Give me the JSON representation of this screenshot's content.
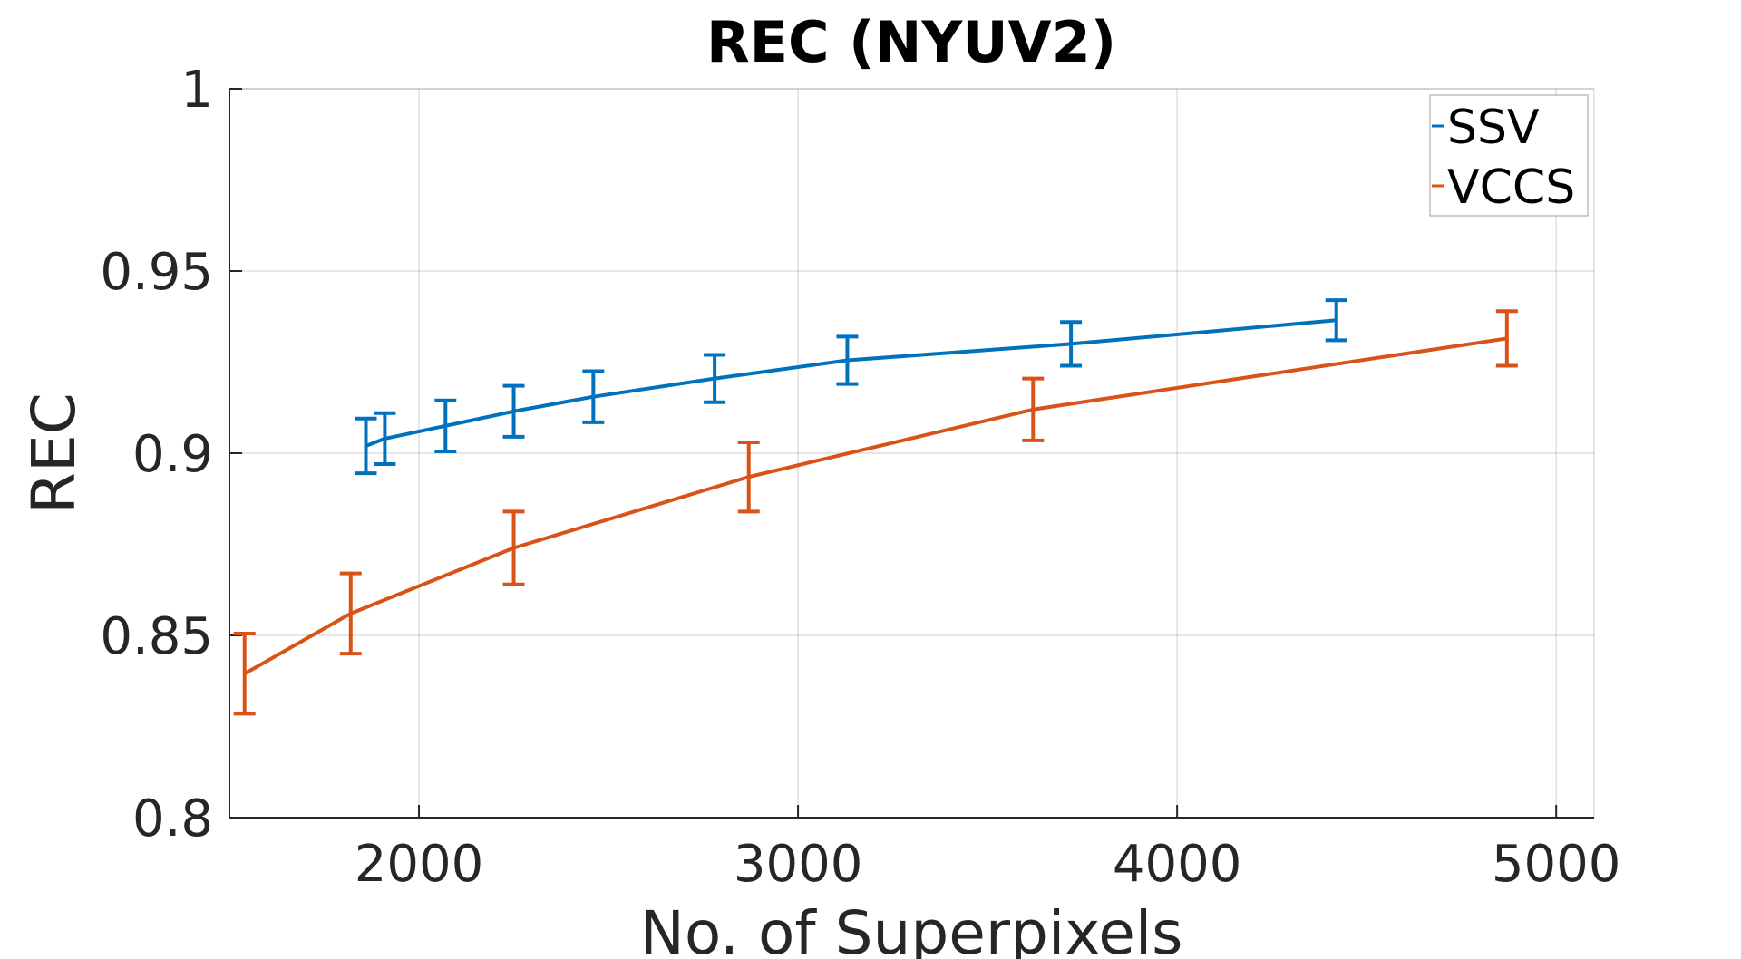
{
  "chart_data": {
    "type": "line",
    "title": "REC (NYUV2)",
    "xlabel": "No. of Superpixels",
    "ylabel": "REC",
    "xlim": [
      1500,
      5100
    ],
    "ylim": [
      0.8,
      1.0
    ],
    "xticks": [
      2000,
      3000,
      4000,
      5000
    ],
    "xtick_labels": [
      "2000",
      "3000",
      "4000",
      "5000"
    ],
    "yticks": [
      0.8,
      0.85,
      0.9,
      0.95,
      1.0
    ],
    "ytick_labels": [
      "0.8",
      "0.85",
      "0.9",
      "0.95",
      "1"
    ],
    "grid": true,
    "legend_position": "top-right",
    "series": [
      {
        "name": "SSV",
        "color": "#0072BD",
        "x": [
          1860,
          1910,
          2070,
          2250,
          2460,
          2780,
          3130,
          3720,
          4420
        ],
        "y": [
          0.902,
          0.904,
          0.9075,
          0.9115,
          0.9155,
          0.9205,
          0.9255,
          0.93,
          0.9365
        ],
        "err": [
          0.0075,
          0.007,
          0.007,
          0.007,
          0.007,
          0.0065,
          0.0065,
          0.006,
          0.0055
        ]
      },
      {
        "name": "VCCS",
        "color": "#D95319",
        "x": [
          1540,
          1820,
          2250,
          2870,
          3620,
          4870
        ],
        "y": [
          0.8395,
          0.856,
          0.874,
          0.8935,
          0.912,
          0.9315
        ],
        "err": [
          0.011,
          0.011,
          0.01,
          0.0095,
          0.0085,
          0.0075
        ]
      }
    ]
  }
}
